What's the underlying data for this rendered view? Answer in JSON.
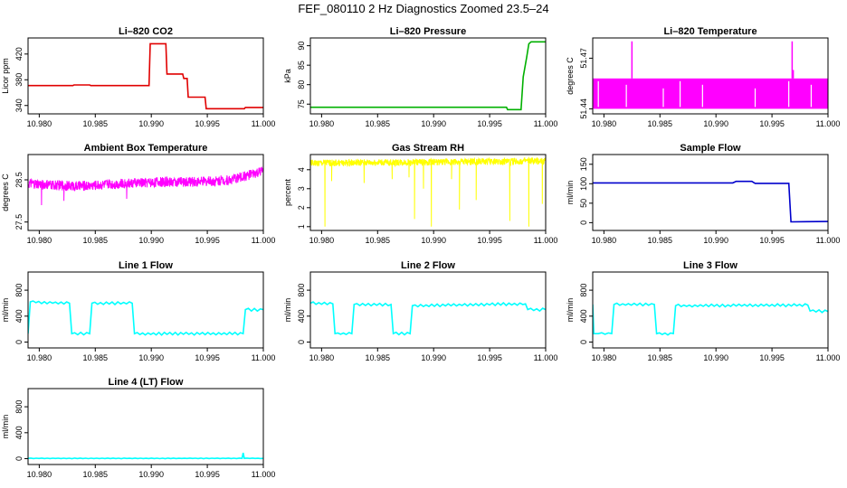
{
  "figure": {
    "title": "FEF_080110  2 Hz Diagnostics Zoomed 23.5–24"
  },
  "chart_data": [
    {
      "type": "line",
      "title": "Li–820 CO2",
      "ylabel": "Licor ppm",
      "xlim": [
        10.979,
        11.0
      ],
      "ylim": [
        327,
        445
      ],
      "xticks": [
        "10.980",
        "10.985",
        "10.990",
        "10.995",
        "11.000"
      ],
      "yticks": [
        "340",
        "380",
        "420"
      ],
      "color": "#e00000",
      "series": [
        {
          "x": [
            10.979,
            10.983,
            10.9831,
            10.9845,
            10.9846,
            10.9898,
            10.9899,
            10.9913,
            10.9914,
            10.9928,
            10.9929,
            10.9932,
            10.9933,
            10.9948,
            10.9949,
            10.9983,
            10.9984,
            11.0
          ],
          "y": [
            371,
            371,
            372,
            372,
            371,
            371,
            436,
            436,
            389,
            389,
            382,
            382,
            353,
            353,
            335,
            335,
            337,
            337
          ]
        }
      ]
    },
    {
      "type": "line",
      "title": "Li–820 Pressure",
      "ylabel": "kPa",
      "xlim": [
        10.979,
        11.0
      ],
      "ylim": [
        72.5,
        92
      ],
      "xticks": [
        "10.980",
        "10.985",
        "10.990",
        "10.995",
        "11.000"
      ],
      "yticks": [
        "75",
        "80",
        "85",
        "90"
      ],
      "color": "#00b000",
      "series": [
        {
          "x": [
            10.979,
            10.9965,
            10.9966,
            10.9978,
            10.998,
            10.9983,
            10.9985,
            10.9987,
            11.0
          ],
          "y": [
            74.2,
            74.2,
            73.6,
            73.6,
            82,
            87,
            90.5,
            91,
            91
          ]
        }
      ]
    },
    {
      "type": "area",
      "title": "Li–820 Temperature",
      "ylabel": "degrees C",
      "xlim": [
        10.979,
        11.0
      ],
      "ylim": [
        51.437,
        51.482
      ],
      "xticks": [
        "10.980",
        "10.985",
        "10.990",
        "10.995",
        "11.000"
      ],
      "yticks": [
        "51.44",
        "51.47"
      ],
      "color": "#ff00ff",
      "series": [
        {
          "x": [
            10.979,
            11.0
          ],
          "y_low": [
            51.44,
            51.44
          ],
          "y_high": [
            51.458,
            51.458
          ],
          "spikes": [
            {
              "x": 10.9825,
              "y": 51.48
            },
            {
              "x": 10.9968,
              "y": 51.48
            },
            {
              "x": 10.9969,
              "y": 51.463
            }
          ],
          "gaps": [
            10.9795,
            10.982,
            10.9853,
            10.9868,
            10.9888,
            10.9935,
            10.9965,
            10.9985
          ]
        }
      ]
    },
    {
      "type": "line",
      "title": "Ambient Box Temperature",
      "ylabel": "degrees C",
      "xlim": [
        10.979,
        11.0
      ],
      "ylim": [
        27.3,
        29.1
      ],
      "xticks": [
        "10.980",
        "10.985",
        "10.990",
        "10.995",
        "11.000"
      ],
      "yticks": [
        "27.5",
        "28.5"
      ],
      "color": "#ff00ff",
      "series": [
        {
          "x": [
            10.979,
            10.9835,
            10.9865,
            10.9905,
            10.994,
            10.997,
            10.9985,
            11.0
          ],
          "y": [
            28.4,
            28.35,
            28.4,
            28.45,
            28.45,
            28.5,
            28.6,
            28.7
          ],
          "noise": 0.12,
          "dips": [
            {
              "x": 10.9797,
              "y": 27.5
            },
            {
              "x": 10.9802,
              "y": 27.9
            },
            {
              "x": 10.9822,
              "y": 28.0
            },
            {
              "x": 10.9878,
              "y": 28.05
            }
          ]
        }
      ]
    },
    {
      "type": "line",
      "title": "Gas Stream RH",
      "ylabel": "percent",
      "xlim": [
        10.979,
        11.0
      ],
      "ylim": [
        0.8,
        4.8
      ],
      "xticks": [
        "10.980",
        "10.985",
        "10.990",
        "10.995",
        "11.000"
      ],
      "yticks": [
        "1",
        "2",
        "3",
        "4"
      ],
      "color": "#ffff00",
      "series": [
        {
          "x": [
            10.979,
            11.0
          ],
          "y": [
            4.35,
            4.45
          ],
          "noise": 0.18,
          "dips": [
            {
              "x": 10.9803,
              "y": 1.0
            },
            {
              "x": 10.9809,
              "y": 3.4
            },
            {
              "x": 10.9838,
              "y": 3.3
            },
            {
              "x": 10.9863,
              "y": 3.5
            },
            {
              "x": 10.9878,
              "y": 3.6
            },
            {
              "x": 10.9883,
              "y": 1.4
            },
            {
              "x": 10.9891,
              "y": 3.0
            },
            {
              "x": 10.9898,
              "y": 1.0
            },
            {
              "x": 10.9916,
              "y": 3.5
            },
            {
              "x": 10.9938,
              "y": 2.4
            },
            {
              "x": 10.9968,
              "y": 1.3
            },
            {
              "x": 10.9985,
              "y": 1.0
            },
            {
              "x": 10.9997,
              "y": 2.2
            },
            {
              "x": 10.9923,
              "y": 1.9
            }
          ]
        }
      ]
    },
    {
      "type": "line",
      "title": "Sample Flow",
      "ylabel": "ml/min",
      "xlim": [
        10.979,
        11.0
      ],
      "ylim": [
        -20,
        175
      ],
      "xticks": [
        "10.980",
        "10.985",
        "10.990",
        "10.995",
        "11.000"
      ],
      "yticks": [
        "0",
        "50",
        "100",
        "150"
      ],
      "color": "#0000cc",
      "series": [
        {
          "x": [
            10.979,
            10.9915,
            10.9918,
            10.9932,
            10.9935,
            10.9965,
            10.9967,
            11.0
          ],
          "y": [
            102,
            102,
            106,
            106,
            101,
            101,
            2,
            3
          ]
        }
      ]
    },
    {
      "type": "line",
      "title": "Line 1 Flow",
      "ylabel": "ml/min",
      "xlim": [
        10.979,
        11.0
      ],
      "ylim": [
        -90,
        1080
      ],
      "xticks": [
        "10.980",
        "10.985",
        "10.990",
        "10.995",
        "11.000"
      ],
      "yticks": [
        "0",
        "400",
        "800"
      ],
      "color": "#00ffff",
      "series": [
        {
          "x": [
            10.979,
            10.9792,
            10.9827,
            10.9829,
            10.9845,
            10.9847,
            10.9883,
            10.9885,
            10.9982,
            10.9984,
            11.0
          ],
          "y": [
            130,
            620,
            600,
            130,
            130,
            600,
            600,
            130,
            130,
            500,
            500
          ],
          "ripple": 22
        }
      ]
    },
    {
      "type": "line",
      "title": "Line 2 Flow",
      "ylabel": "ml/min",
      "xlim": [
        10.979,
        11.0
      ],
      "ylim": [
        -90,
        1080
      ],
      "xticks": [
        "10.980",
        "10.985",
        "10.990",
        "10.995",
        "11.000"
      ],
      "yticks": [
        "0",
        "400",
        "800"
      ],
      "color": "#00ffff",
      "series": [
        {
          "x": [
            10.979,
            10.981,
            10.9812,
            10.9827,
            10.9829,
            10.9862,
            10.9864,
            10.9879,
            10.9881,
            10.9982,
            10.9984,
            11.0
          ],
          "y": [
            600,
            590,
            130,
            130,
            580,
            580,
            130,
            130,
            560,
            590,
            500,
            500
          ],
          "ripple": 22
        }
      ]
    },
    {
      "type": "line",
      "title": "Line 3 Flow",
      "ylabel": "ml/min",
      "xlim": [
        10.979,
        11.0
      ],
      "ylim": [
        -90,
        1080
      ],
      "xticks": [
        "10.980",
        "10.985",
        "10.990",
        "10.995",
        "11.000"
      ],
      "yticks": [
        "0",
        "400",
        "800"
      ],
      "color": "#00ffff",
      "series": [
        {
          "x": [
            10.979,
            10.9791,
            10.9795,
            10.9807,
            10.9809,
            10.9845,
            10.9847,
            10.9862,
            10.9864,
            10.9982,
            10.9984,
            11.0
          ],
          "y": [
            580,
            130,
            130,
            130,
            580,
            580,
            130,
            130,
            560,
            570,
            480,
            470
          ],
          "ripple": 22
        }
      ]
    },
    {
      "type": "line",
      "title": "Line 4 (LT) Flow",
      "ylabel": "ml/min",
      "xlim": [
        10.979,
        11.0
      ],
      "ylim": [
        -90,
        1080
      ],
      "xticks": [
        "10.980",
        "10.985",
        "10.990",
        "10.995",
        "11.000"
      ],
      "yticks": [
        "0",
        "400",
        "800"
      ],
      "color": "#00ffff",
      "series": [
        {
          "x": [
            10.979,
            10.9981,
            10.9982,
            10.9983,
            11.0
          ],
          "y": [
            5,
            5,
            90,
            5,
            5
          ],
          "ripple": 4
        }
      ]
    }
  ]
}
